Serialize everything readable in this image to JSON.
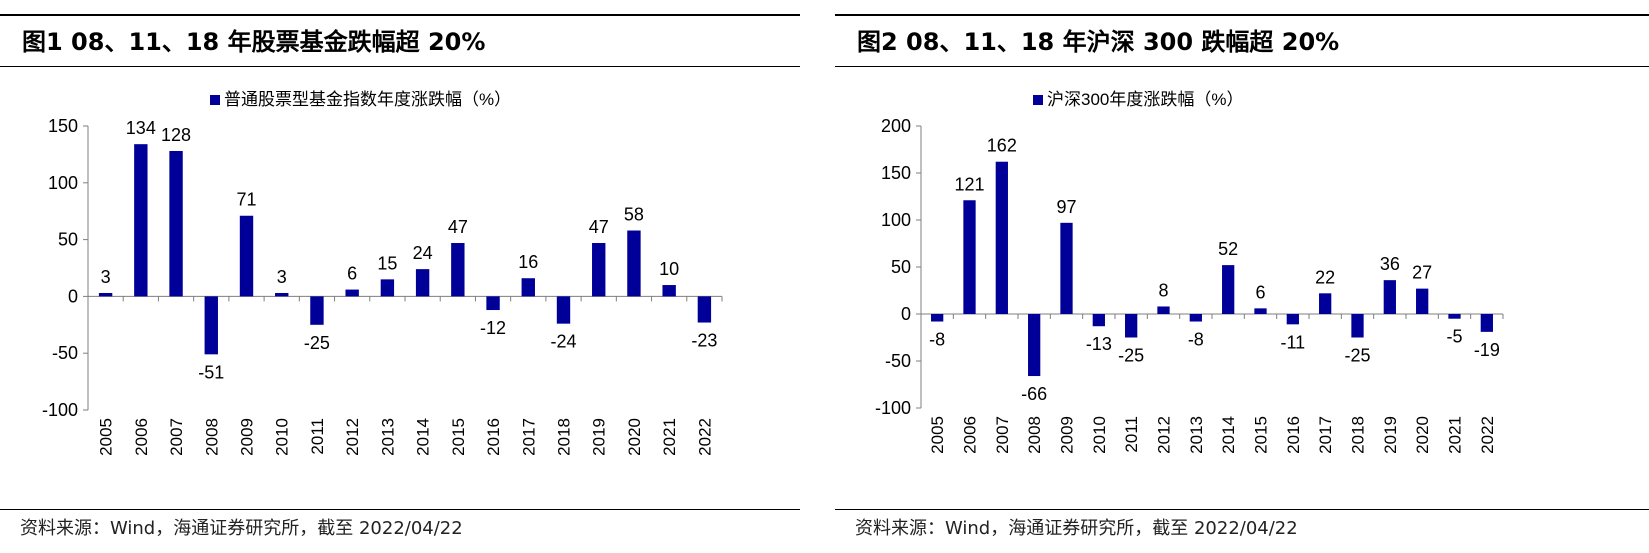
{
  "panels": [
    {
      "title": "图1  08、11、18 年股票基金跌幅超 20%",
      "source": "资料来源：Wind，海通证券研究所，截至 2022/04/22"
    },
    {
      "title": "图2  08、11、18 年沪深 300 跌幅超 20%",
      "source": "资料来源：Wind，海通证券研究所，截至 2022/04/22"
    }
  ],
  "colors": {
    "bar": "#000099",
    "axis": "#7f7f7f",
    "text": "#000000"
  },
  "chart_data": [
    {
      "type": "bar",
      "title": "",
      "legend": "普通股票型基金指数年度涨跌幅（%）",
      "legend_position": "top",
      "categories": [
        "2005",
        "2006",
        "2007",
        "2008",
        "2009",
        "2010",
        "2011",
        "2012",
        "2013",
        "2014",
        "2015",
        "2016",
        "2017",
        "2018",
        "2019",
        "2020",
        "2021",
        "2022"
      ],
      "values": [
        3,
        134,
        128,
        -51,
        71,
        3,
        -25,
        6,
        15,
        24,
        47,
        -12,
        16,
        -24,
        47,
        58,
        10,
        -23
      ],
      "ylim": [
        -100,
        150
      ],
      "yticks": [
        -100,
        -50,
        0,
        50,
        100,
        150
      ],
      "xlabel": "",
      "ylabel": "",
      "grid": false
    },
    {
      "type": "bar",
      "title": "",
      "legend": "沪深300年度涨跌幅（%）",
      "legend_position": "top",
      "categories": [
        "2005",
        "2006",
        "2007",
        "2008",
        "2009",
        "2010",
        "2011",
        "2012",
        "2013",
        "2014",
        "2015",
        "2016",
        "2017",
        "2018",
        "2019",
        "2020",
        "2021",
        "2022"
      ],
      "values": [
        -8,
        121,
        162,
        -66,
        97,
        -13,
        -25,
        8,
        -8,
        52,
        6,
        -11,
        22,
        -25,
        36,
        27,
        -5,
        -19
      ],
      "ylim": [
        -100,
        200
      ],
      "yticks": [
        -100,
        -50,
        0,
        50,
        100,
        150,
        200
      ],
      "xlabel": "",
      "ylabel": "",
      "grid": false
    }
  ]
}
